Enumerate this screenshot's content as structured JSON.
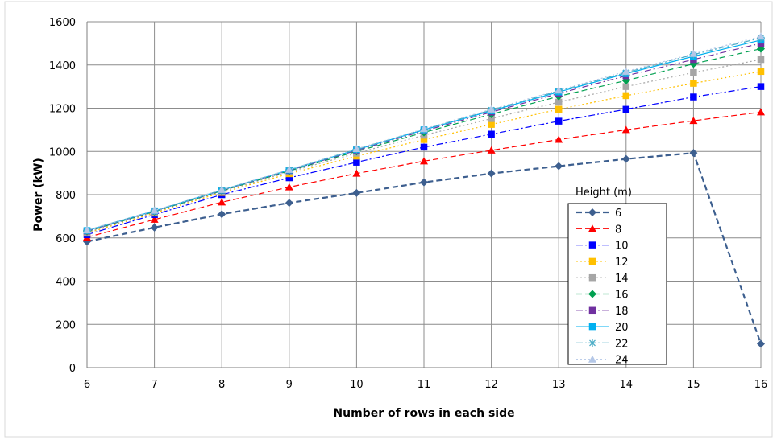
{
  "chart_data": {
    "type": "line",
    "title": "",
    "xlabel": "Number of rows in each side",
    "ylabel": "Power (kW)",
    "x": [
      6,
      7,
      8,
      9,
      10,
      11,
      12,
      13,
      14,
      15,
      16
    ],
    "xlim": [
      6,
      16
    ],
    "ylim": [
      0,
      1600
    ],
    "yticks": [
      0,
      200,
      400,
      600,
      800,
      1000,
      1200,
      1400,
      1600
    ],
    "grid": "both",
    "legend_title": "Height (m)",
    "legend_position": "bottom-right",
    "series": [
      {
        "name": "6",
        "color": "#3d5f8f",
        "marker": "diamond",
        "dash": "dash",
        "values": [
          583,
          648,
          710,
          762,
          808,
          857,
          898,
          932,
          965,
          993,
          110
        ]
      },
      {
        "name": "8",
        "color": "#ff0000",
        "marker": "triangle",
        "dash": "dash",
        "values": [
          603,
          685,
          765,
          835,
          898,
          955,
          1005,
          1055,
          1100,
          1142,
          1182
        ]
      },
      {
        "name": "10",
        "color": "#0000ff",
        "marker": "square",
        "dash": "dashdot",
        "values": [
          615,
          708,
          800,
          878,
          950,
          1020,
          1080,
          1140,
          1195,
          1252,
          1300
        ]
      },
      {
        "name": "12",
        "color": "#ffc000",
        "marker": "square",
        "dash": "dot",
        "values": [
          622,
          715,
          810,
          897,
          978,
          1055,
          1125,
          1195,
          1258,
          1315,
          1370
        ]
      },
      {
        "name": "14",
        "color": "#a6a6a6",
        "marker": "square",
        "dash": "dot",
        "values": [
          626,
          720,
          815,
          905,
          992,
          1075,
          1152,
          1228,
          1300,
          1365,
          1425
        ]
      },
      {
        "name": "16",
        "color": "#00a050",
        "marker": "diamond",
        "dash": "dash",
        "values": [
          630,
          722,
          818,
          910,
          1000,
          1088,
          1172,
          1255,
          1328,
          1405,
          1475
        ]
      },
      {
        "name": "18",
        "color": "#7030a0",
        "marker": "square",
        "dash": "dashdot",
        "values": [
          632,
          724,
          820,
          912,
          1005,
          1095,
          1182,
          1268,
          1350,
          1425,
          1500
        ]
      },
      {
        "name": "20",
        "color": "#00b0f0",
        "marker": "square",
        "dash": "solid",
        "values": [
          634,
          725,
          821,
          914,
          1008,
          1100,
          1188,
          1275,
          1360,
          1440,
          1515
        ]
      },
      {
        "name": "22",
        "color": "#4bacc6",
        "marker": "asterisk",
        "dash": "dashdot",
        "values": [
          635,
          726,
          822,
          915,
          1010,
          1102,
          1192,
          1280,
          1365,
          1448,
          1525
        ]
      },
      {
        "name": "24",
        "color": "#b4c7e7",
        "marker": "triangle",
        "dash": "dot",
        "values": [
          636,
          727,
          823,
          916,
          1012,
          1104,
          1195,
          1283,
          1370,
          1452,
          1532
        ]
      }
    ]
  }
}
